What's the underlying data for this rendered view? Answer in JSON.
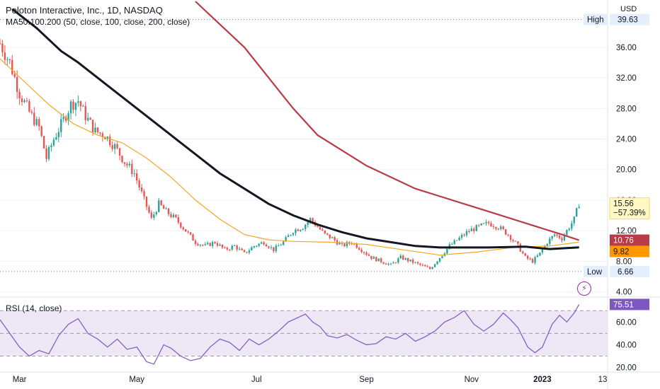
{
  "header": {
    "title": "Peloton Interactive, Inc., 1D, NASDAQ",
    "ma_legend": "MA50.100.200 (50, close, 100, close, 200, close)",
    "rsi_legend": "RSI (14, close)",
    "currency": "USD"
  },
  "colors": {
    "up": "#26a69a",
    "down": "#ef5350",
    "ma50": "#f5a623",
    "ma100": "#131722",
    "ma200": "#b83b46",
    "rsi": "#7e57c2",
    "rsi_band": "#ede7f6",
    "lightning": "#9c27b0"
  },
  "price_axis": {
    "ticks": [
      "36.00",
      "32.00",
      "28.00",
      "24.00",
      "20.00",
      "16.00",
      "12.00",
      "8.00",
      "4.00"
    ],
    "ylim": [
      3.5,
      42
    ]
  },
  "rsi_axis": {
    "ticks": [
      "60.00",
      "40.00",
      "20.00"
    ],
    "ylim": [
      16,
      82
    ],
    "bands": [
      70,
      50,
      30
    ]
  },
  "time_axis": {
    "labels": [
      "Mar",
      "May",
      "Jul",
      "Sep",
      "Nov",
      "2023",
      "13"
    ]
  },
  "markers": {
    "high_label": "High",
    "high_value": "39.63",
    "low_label": "Low",
    "low_value": "6.66"
  },
  "tags": {
    "last_price": "15.56",
    "last_change": "−57.39%",
    "ma200_value": "10.76",
    "ma100_value": "9.82",
    "rsi_value": "75.51"
  },
  "chart_data": {
    "type": "candlestick",
    "symbol": "Peloton Interactive, Inc.",
    "interval": "1D",
    "exchange": "NASDAQ",
    "x_labels": [
      "Mar",
      "May",
      "Jul",
      "Sep",
      "Nov",
      "2023",
      "13"
    ],
    "close_series": [
      {
        "t": 0,
        "v": 36.5
      },
      {
        "t": 4,
        "v": 34.0
      },
      {
        "t": 8,
        "v": 30.0
      },
      {
        "t": 12,
        "v": 27.5
      },
      {
        "t": 16,
        "v": 25.5
      },
      {
        "t": 19,
        "v": 21.5
      },
      {
        "t": 22,
        "v": 24.0
      },
      {
        "t": 26,
        "v": 26.5
      },
      {
        "t": 29,
        "v": 28.5
      },
      {
        "t": 32,
        "v": 29.0
      },
      {
        "t": 35,
        "v": 27.0
      },
      {
        "t": 39,
        "v": 25.0
      },
      {
        "t": 43,
        "v": 24.5
      },
      {
        "t": 47,
        "v": 23.0
      },
      {
        "t": 51,
        "v": 21.0
      },
      {
        "t": 55,
        "v": 19.5
      },
      {
        "t": 59,
        "v": 16.0
      },
      {
        "t": 62,
        "v": 13.5
      },
      {
        "t": 65,
        "v": 15.5
      },
      {
        "t": 68,
        "v": 14.5
      },
      {
        "t": 72,
        "v": 13.5
      },
      {
        "t": 76,
        "v": 12.0
      },
      {
        "t": 80,
        "v": 10.5
      },
      {
        "t": 84,
        "v": 10.0
      },
      {
        "t": 88,
        "v": 10.5
      },
      {
        "t": 92,
        "v": 9.5
      },
      {
        "t": 96,
        "v": 10.0
      },
      {
        "t": 100,
        "v": 9.0
      },
      {
        "t": 104,
        "v": 10.0
      },
      {
        "t": 108,
        "v": 10.5
      },
      {
        "t": 112,
        "v": 9.5
      },
      {
        "t": 116,
        "v": 10.5
      },
      {
        "t": 120,
        "v": 12.0
      },
      {
        "t": 124,
        "v": 12.5
      },
      {
        "t": 127,
        "v": 13.5
      },
      {
        "t": 130,
        "v": 12.5
      },
      {
        "t": 133,
        "v": 11.5
      },
      {
        "t": 136,
        "v": 11.0
      },
      {
        "t": 140,
        "v": 10.0
      },
      {
        "t": 144,
        "v": 10.5
      },
      {
        "t": 148,
        "v": 9.5
      },
      {
        "t": 152,
        "v": 8.5
      },
      {
        "t": 156,
        "v": 8.0
      },
      {
        "t": 160,
        "v": 7.5
      },
      {
        "t": 164,
        "v": 8.5
      },
      {
        "t": 168,
        "v": 8.0
      },
      {
        "t": 172,
        "v": 7.5
      },
      {
        "t": 176,
        "v": 7.0
      },
      {
        "t": 180,
        "v": 8.5
      },
      {
        "t": 184,
        "v": 10.0
      },
      {
        "t": 188,
        "v": 11.0
      },
      {
        "t": 192,
        "v": 12.0
      },
      {
        "t": 196,
        "v": 12.5
      },
      {
        "t": 200,
        "v": 13.0
      },
      {
        "t": 204,
        "v": 12.5
      },
      {
        "t": 208,
        "v": 11.5
      },
      {
        "t": 212,
        "v": 10.0
      },
      {
        "t": 215,
        "v": 8.5
      },
      {
        "t": 218,
        "v": 8.0
      },
      {
        "t": 221,
        "v": 9.0
      },
      {
        "t": 224,
        "v": 10.5
      },
      {
        "t": 227,
        "v": 11.5
      },
      {
        "t": 230,
        "v": 11.0
      },
      {
        "t": 233,
        "v": 12.5
      },
      {
        "t": 235,
        "v": 13.5
      },
      {
        "t": 237,
        "v": 15.56
      }
    ],
    "ma50": [
      {
        "t": 0,
        "v": 34.5
      },
      {
        "t": 10,
        "v": 31.5
      },
      {
        "t": 20,
        "v": 28.5
      },
      {
        "t": 30,
        "v": 26.0
      },
      {
        "t": 40,
        "v": 24.5
      },
      {
        "t": 50,
        "v": 23.5
      },
      {
        "t": 60,
        "v": 21.5
      },
      {
        "t": 70,
        "v": 19.0
      },
      {
        "t": 80,
        "v": 16.0
      },
      {
        "t": 90,
        "v": 13.5
      },
      {
        "t": 100,
        "v": 11.5
      },
      {
        "t": 110,
        "v": 10.8
      },
      {
        "t": 120,
        "v": 10.6
      },
      {
        "t": 135,
        "v": 10.5
      },
      {
        "t": 150,
        "v": 10.2
      },
      {
        "t": 165,
        "v": 9.5
      },
      {
        "t": 180,
        "v": 8.8
      },
      {
        "t": 195,
        "v": 9.2
      },
      {
        "t": 210,
        "v": 9.8
      },
      {
        "t": 225,
        "v": 10.0
      },
      {
        "t": 237,
        "v": 10.5
      }
    ],
    "ma100": [
      {
        "t": 5,
        "v": 41.0
      },
      {
        "t": 15,
        "v": 38.5
      },
      {
        "t": 25,
        "v": 35.5
      },
      {
        "t": 32,
        "v": 34.0
      },
      {
        "t": 40,
        "v": 32.0
      },
      {
        "t": 50,
        "v": 29.5
      },
      {
        "t": 60,
        "v": 27.0
      },
      {
        "t": 70,
        "v": 24.5
      },
      {
        "t": 80,
        "v": 22.0
      },
      {
        "t": 90,
        "v": 19.5
      },
      {
        "t": 100,
        "v": 17.5
      },
      {
        "t": 110,
        "v": 15.5
      },
      {
        "t": 120,
        "v": 14.0
      },
      {
        "t": 130,
        "v": 12.8
      },
      {
        "t": 140,
        "v": 11.8
      },
      {
        "t": 150,
        "v": 11.0
      },
      {
        "t": 160,
        "v": 10.5
      },
      {
        "t": 170,
        "v": 10.0
      },
      {
        "t": 180,
        "v": 9.8
      },
      {
        "t": 200,
        "v": 9.8
      },
      {
        "t": 215,
        "v": 9.9
      },
      {
        "t": 225,
        "v": 9.6
      },
      {
        "t": 237,
        "v": 9.82
      }
    ],
    "ma200": [
      {
        "t": 80,
        "v": 42.0
      },
      {
        "t": 90,
        "v": 39.0
      },
      {
        "t": 100,
        "v": 36.0
      },
      {
        "t": 110,
        "v": 32.0
      },
      {
        "t": 120,
        "v": 28.0
      },
      {
        "t": 130,
        "v": 24.5
      },
      {
        "t": 140,
        "v": 22.5
      },
      {
        "t": 150,
        "v": 20.5
      },
      {
        "t": 160,
        "v": 19.0
      },
      {
        "t": 170,
        "v": 17.5
      },
      {
        "t": 180,
        "v": 16.5
      },
      {
        "t": 190,
        "v": 15.5
      },
      {
        "t": 200,
        "v": 14.5
      },
      {
        "t": 210,
        "v": 13.5
      },
      {
        "t": 220,
        "v": 12.5
      },
      {
        "t": 230,
        "v": 11.5
      },
      {
        "t": 237,
        "v": 10.76
      }
    ],
    "rsi": [
      {
        "t": 0,
        "v": 62
      },
      {
        "t": 4,
        "v": 50
      },
      {
        "t": 8,
        "v": 38
      },
      {
        "t": 12,
        "v": 30
      },
      {
        "t": 16,
        "v": 35
      },
      {
        "t": 20,
        "v": 32
      },
      {
        "t": 24,
        "v": 48
      },
      {
        "t": 28,
        "v": 58
      },
      {
        "t": 32,
        "v": 63
      },
      {
        "t": 36,
        "v": 50
      },
      {
        "t": 40,
        "v": 45
      },
      {
        "t": 44,
        "v": 38
      },
      {
        "t": 48,
        "v": 45
      },
      {
        "t": 52,
        "v": 36
      },
      {
        "t": 56,
        "v": 38
      },
      {
        "t": 60,
        "v": 25
      },
      {
        "t": 63,
        "v": 23
      },
      {
        "t": 67,
        "v": 40
      },
      {
        "t": 70,
        "v": 37
      },
      {
        "t": 74,
        "v": 30
      },
      {
        "t": 78,
        "v": 26
      },
      {
        "t": 82,
        "v": 28
      },
      {
        "t": 86,
        "v": 38
      },
      {
        "t": 90,
        "v": 45
      },
      {
        "t": 94,
        "v": 42
      },
      {
        "t": 98,
        "v": 35
      },
      {
        "t": 102,
        "v": 45
      },
      {
        "t": 106,
        "v": 40
      },
      {
        "t": 110,
        "v": 45
      },
      {
        "t": 114,
        "v": 52
      },
      {
        "t": 118,
        "v": 60
      },
      {
        "t": 122,
        "v": 64
      },
      {
        "t": 125,
        "v": 67
      },
      {
        "t": 128,
        "v": 60
      },
      {
        "t": 131,
        "v": 56
      },
      {
        "t": 134,
        "v": 48
      },
      {
        "t": 138,
        "v": 46
      },
      {
        "t": 142,
        "v": 49
      },
      {
        "t": 146,
        "v": 44
      },
      {
        "t": 150,
        "v": 40
      },
      {
        "t": 154,
        "v": 41
      },
      {
        "t": 158,
        "v": 47
      },
      {
        "t": 162,
        "v": 45
      },
      {
        "t": 166,
        "v": 50
      },
      {
        "t": 170,
        "v": 43
      },
      {
        "t": 174,
        "v": 47
      },
      {
        "t": 178,
        "v": 52
      },
      {
        "t": 182,
        "v": 60
      },
      {
        "t": 186,
        "v": 64
      },
      {
        "t": 190,
        "v": 70
      },
      {
        "t": 194,
        "v": 58
      },
      {
        "t": 198,
        "v": 52
      },
      {
        "t": 202,
        "v": 58
      },
      {
        "t": 206,
        "v": 68
      },
      {
        "t": 209,
        "v": 62
      },
      {
        "t": 212,
        "v": 55
      },
      {
        "t": 216,
        "v": 38
      },
      {
        "t": 219,
        "v": 33
      },
      {
        "t": 222,
        "v": 38
      },
      {
        "t": 226,
        "v": 58
      },
      {
        "t": 229,
        "v": 66
      },
      {
        "t": 232,
        "v": 60
      },
      {
        "t": 235,
        "v": 68
      },
      {
        "t": 237,
        "v": 75.51
      }
    ],
    "rsi_bands": [
      70,
      50,
      30
    ],
    "high": 39.63,
    "low": 6.66,
    "last": 15.56,
    "change_pct": -57.39
  }
}
